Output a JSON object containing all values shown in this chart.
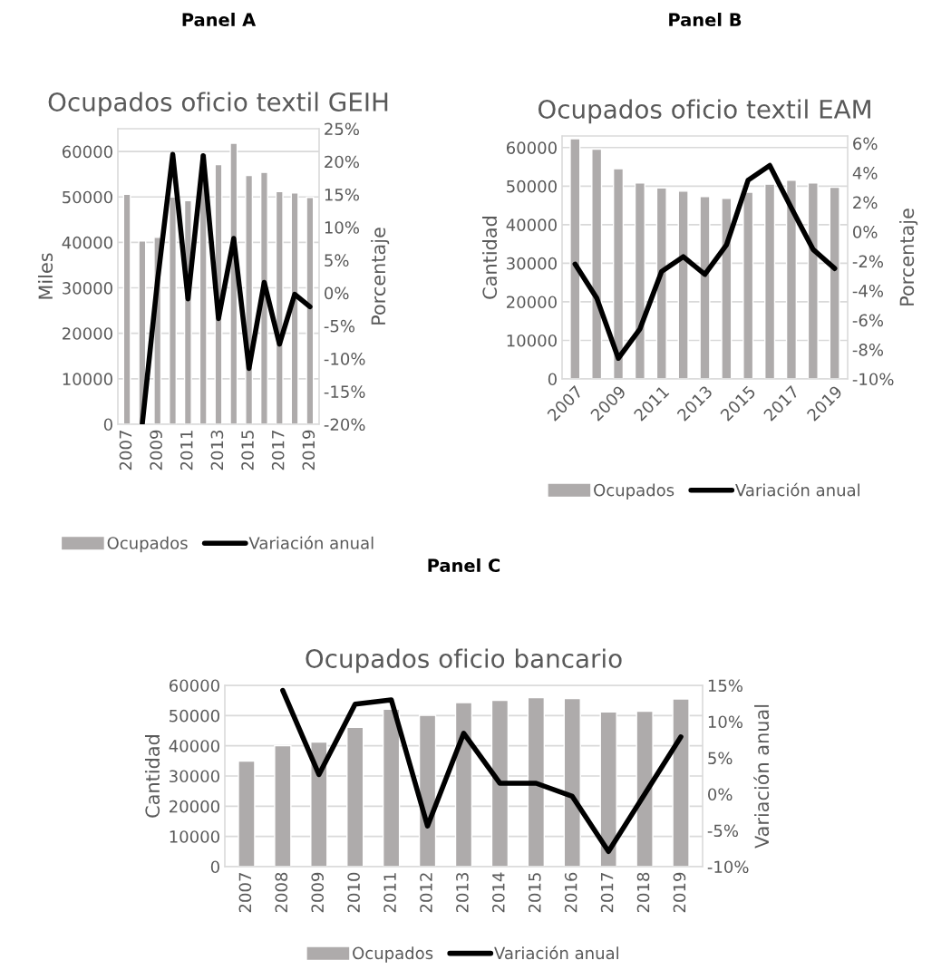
{
  "chart_data": [
    {
      "type": "bar",
      "title": "Ocupados oficio textil GEIH",
      "annotations": [
        "Panel A"
      ],
      "ylabel": "Miles",
      "y2label": "Porcentaje",
      "categories": [
        "2007",
        null,
        "2009",
        null,
        "2011",
        null,
        "2013",
        null,
        "2015",
        null,
        "2017",
        null,
        "2019"
      ],
      "series": [
        {
          "name": "Ocupados",
          "color": "#aeabab",
          "values": [
            50600,
            40300,
            41100,
            50000,
            49200,
            59500,
            57100,
            61800,
            54700,
            55400,
            51200,
            50900,
            49900
          ]
        },
        {
          "name": "Variación anual",
          "type": "line",
          "axis": "y2",
          "color": "#000000",
          "values": [
            null,
            -20,
            1.8,
            21.1,
            -0.9,
            20.9,
            -3.9,
            8.3,
            -11.5,
            1.6,
            -7.8,
            -0.2,
            -2.1
          ]
        }
      ],
      "ylim": [
        0,
        65000
      ],
      "yticks": [
        0,
        10000,
        20000,
        30000,
        40000,
        50000,
        60000
      ],
      "y2lim": [
        -20,
        25
      ],
      "y2ticks": [
        {
          "value": -20,
          "label": "-20%"
        },
        {
          "value": -15,
          "label": "-15%"
        },
        {
          "value": -10,
          "label": "-10%"
        },
        {
          "value": -5,
          "label": "-5%"
        },
        {
          "value": 0,
          "label": "0%"
        },
        {
          "value": 5,
          "label": "5%"
        },
        {
          "value": 10,
          "label": "10%"
        },
        {
          "value": 15,
          "label": "15%"
        },
        {
          "value": 20,
          "label": "20%"
        },
        {
          "value": 25,
          "label": "25%"
        }
      ],
      "grid": "y",
      "legend": "bottom"
    },
    {
      "type": "bar",
      "title": "Ocupados oficio textil EAM",
      "annotations": [
        "Panel B"
      ],
      "ylabel": "Cantidad",
      "y2label": "Porcentaje",
      "categories": [
        "2007",
        null,
        "2009",
        null,
        "2011",
        null,
        "2013",
        null,
        "2015",
        null,
        "2017",
        null,
        "2019"
      ],
      "series": [
        {
          "name": "Ocupados",
          "color": "#aeabab",
          "values": [
            62300,
            59600,
            54500,
            50800,
            49500,
            48700,
            47300,
            46800,
            48400,
            50500,
            51500,
            50800,
            49700
          ]
        },
        {
          "name": "Variación anual",
          "type": "line",
          "axis": "y2",
          "color": "#000000",
          "values": [
            -2.2,
            -4.5,
            -8.6,
            -6.6,
            -2.7,
            -1.7,
            -2.9,
            -0.9,
            3.5,
            4.5,
            1.6,
            -1.2,
            -2.5
          ]
        }
      ],
      "ylim": [
        0,
        63000
      ],
      "yticks": [
        0,
        10000,
        20000,
        30000,
        40000,
        50000,
        60000
      ],
      "y2lim": [
        -10,
        6.5
      ],
      "y2ticks": [
        {
          "value": -10,
          "label": "-10%"
        },
        {
          "value": -8,
          "label": "-8%"
        },
        {
          "value": -6,
          "label": "-6%"
        },
        {
          "value": -4,
          "label": "-4%"
        },
        {
          "value": -2,
          "label": "-2%"
        },
        {
          "value": 0,
          "label": "0%"
        },
        {
          "value": 2,
          "label": "2%"
        },
        {
          "value": 4,
          "label": "4%"
        },
        {
          "value": 6,
          "label": "6%"
        }
      ],
      "grid": "y",
      "legend": "bottom"
    },
    {
      "type": "bar",
      "title": "Ocupados oficio bancario",
      "annotations": [
        "Panel C"
      ],
      "ylabel": "Cantidad",
      "y2label": "Variación anual",
      "categories": [
        "2007",
        "2008",
        "2009",
        "2010",
        "2011",
        "2012",
        "2013",
        "2014",
        "2015",
        "2016",
        "2017",
        "2018",
        "2019"
      ],
      "series": [
        {
          "name": "Ocupados",
          "color": "#aeabab",
          "values": [
            34900,
            40000,
            41200,
            46100,
            52100,
            50100,
            54300,
            55000,
            55900,
            55600,
            51200,
            51400,
            55500
          ]
        },
        {
          "name": "Variación anual",
          "type": "line",
          "axis": "y2",
          "color": "#000000",
          "values": [
            null,
            14.3,
            2.7,
            12.4,
            13.0,
            -4.4,
            8.4,
            1.5,
            1.5,
            -0.3,
            -7.9,
            0.0,
            7.9
          ]
        }
      ],
      "ylim": [
        0,
        60000
      ],
      "yticks": [
        0,
        10000,
        20000,
        30000,
        40000,
        50000,
        60000
      ],
      "y2lim": [
        -10,
        15
      ],
      "y2ticks": [
        {
          "value": -10,
          "label": "-10%"
        },
        {
          "value": -5,
          "label": "-5%"
        },
        {
          "value": 0,
          "label": "0%"
        },
        {
          "value": 5,
          "label": "5%"
        },
        {
          "value": 10,
          "label": "10%"
        },
        {
          "value": 15,
          "label": "15%"
        }
      ],
      "grid": "y",
      "legend": "bottom"
    }
  ]
}
